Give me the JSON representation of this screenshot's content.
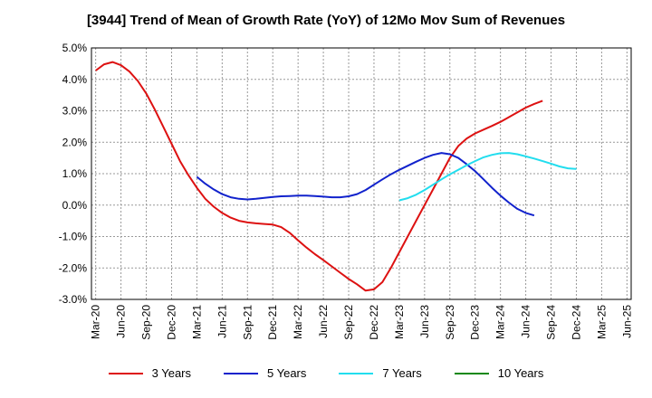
{
  "chart_data": {
    "type": "line",
    "title": "[3944]  Trend of Mean of Growth Rate (YoY) of 12Mo Mov Sum of Revenues",
    "xlabel": "",
    "ylabel": "",
    "ylim": [
      -3.0,
      5.0
    ],
    "ytick_values": [
      5.0,
      4.0,
      3.0,
      2.0,
      1.0,
      0.0,
      -1.0,
      -2.0,
      -3.0
    ],
    "ytick_labels": [
      "5.0%",
      "4.0%",
      "3.0%",
      "2.0%",
      "1.0%",
      "0.0%",
      "-1.0%",
      "-2.0%",
      "-3.0%"
    ],
    "x_start": "Mar-20",
    "x_count": 64,
    "xtick_labels": [
      "Mar-20",
      "Jun-20",
      "Sep-20",
      "Dec-20",
      "Mar-21",
      "Jun-21",
      "Sep-21",
      "Dec-21",
      "Mar-22",
      "Jun-22",
      "Sep-22",
      "Dec-22",
      "Mar-23",
      "Jun-23",
      "Sep-23",
      "Dec-23",
      "Mar-24",
      "Jun-24",
      "Sep-24",
      "Dec-24",
      "Mar-25",
      "Jun-25"
    ],
    "grid": true,
    "legend_position": "bottom",
    "series": [
      {
        "name": "3 Years",
        "color": "#dd1111",
        "start_index": 0,
        "values": [
          4.28,
          4.48,
          4.55,
          4.45,
          4.25,
          3.95,
          3.55,
          3.05,
          2.5,
          1.95,
          1.4,
          0.95,
          0.55,
          0.2,
          -0.05,
          -0.25,
          -0.4,
          -0.5,
          -0.55,
          -0.58,
          -0.6,
          -0.62,
          -0.7,
          -0.88,
          -1.12,
          -1.35,
          -1.56,
          -1.75,
          -1.95,
          -2.15,
          -2.35,
          -2.52,
          -2.72,
          -2.68,
          -2.45,
          -2.0,
          -1.5,
          -1.0,
          -0.5,
          0.0,
          0.5,
          1.0,
          1.5,
          1.88,
          2.12,
          2.28,
          2.4,
          2.52,
          2.65,
          2.8,
          2.95,
          3.1,
          3.22,
          3.32
        ]
      },
      {
        "name": "5 Years",
        "color": "#1122cc",
        "start_index": 12,
        "values": [
          0.9,
          0.68,
          0.5,
          0.35,
          0.25,
          0.2,
          0.18,
          0.2,
          0.23,
          0.26,
          0.28,
          0.29,
          0.3,
          0.3,
          0.29,
          0.27,
          0.25,
          0.25,
          0.28,
          0.35,
          0.48,
          0.65,
          0.82,
          0.98,
          1.12,
          1.25,
          1.38,
          1.5,
          1.6,
          1.66,
          1.62,
          1.5,
          1.3,
          1.08,
          0.82,
          0.55,
          0.3,
          0.08,
          -0.12,
          -0.25,
          -0.33
        ]
      },
      {
        "name": "7 Years",
        "color": "#22ddee",
        "start_index": 36,
        "values": [
          0.15,
          0.22,
          0.33,
          0.48,
          0.65,
          0.82,
          0.98,
          1.12,
          1.27,
          1.4,
          1.52,
          1.6,
          1.65,
          1.66,
          1.62,
          1.55,
          1.48,
          1.4,
          1.32,
          1.23,
          1.17,
          1.15
        ]
      },
      {
        "name": "10 Years",
        "color": "#118811",
        "start_index": 0,
        "values": []
      }
    ]
  }
}
